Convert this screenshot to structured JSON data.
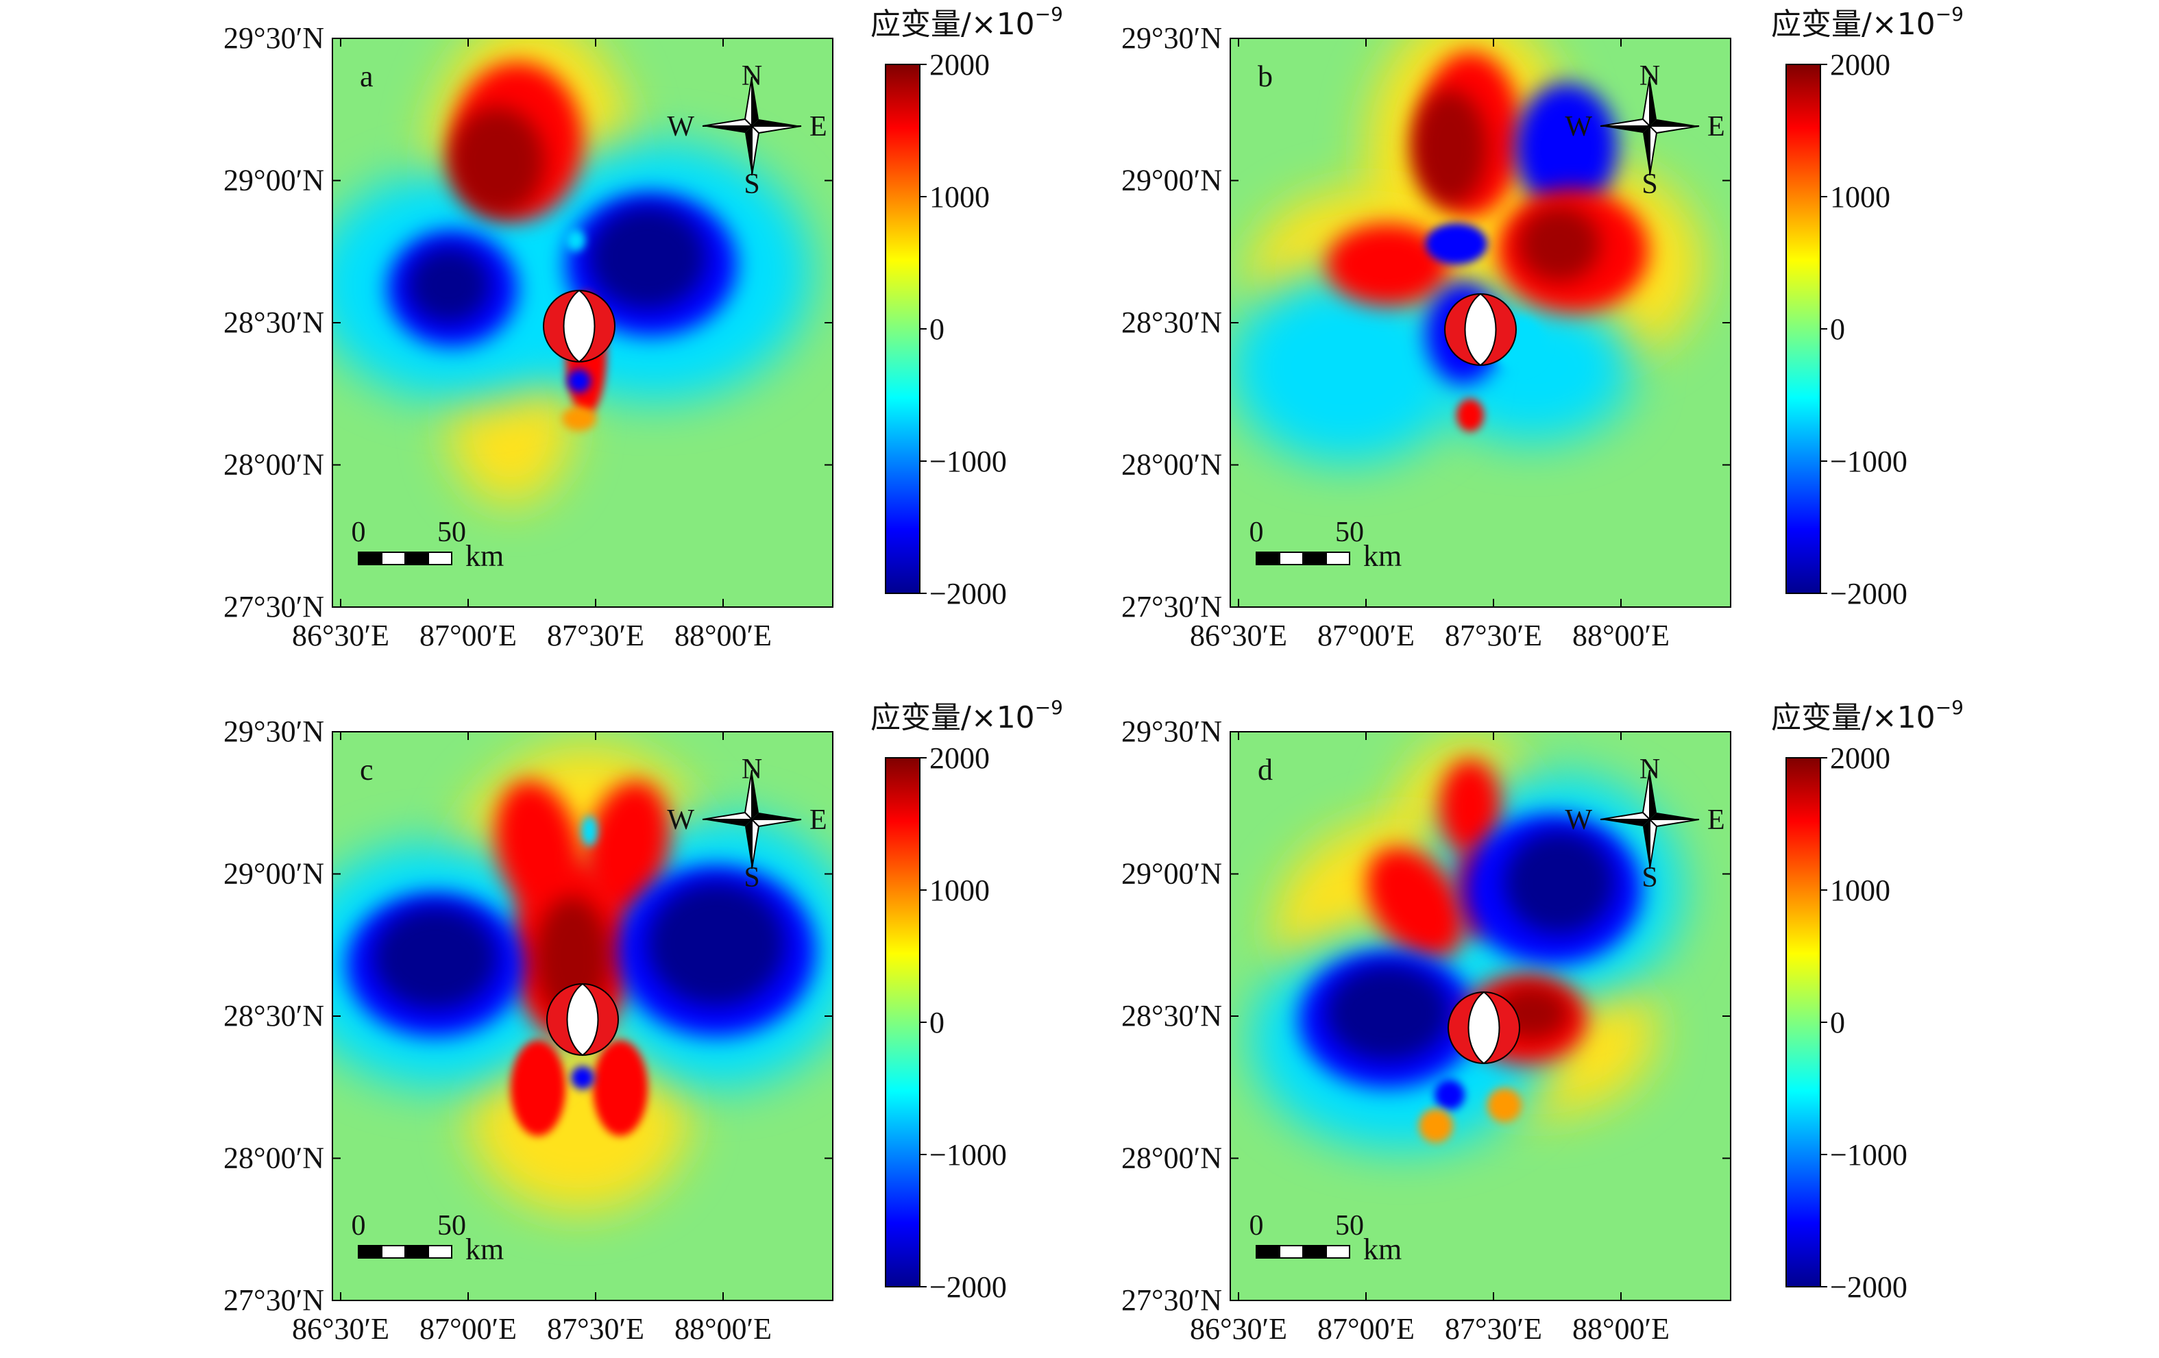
{
  "figure": {
    "panels": [
      {
        "id": "a",
        "label": "a",
        "pattern": "a"
      },
      {
        "id": "b",
        "label": "b",
        "pattern": "b"
      },
      {
        "id": "c",
        "label": "c",
        "pattern": "c"
      },
      {
        "id": "d",
        "label": "d",
        "pattern": "d"
      }
    ],
    "lat_ticks": [
      "29°30′N",
      "29°00′N",
      "28°30′N",
      "28°00′N",
      "27°30′N"
    ],
    "lon_ticks": [
      "86°30′E",
      "87°00′E",
      "87°30′E",
      "88°00′E"
    ],
    "compass": {
      "n": "N",
      "s": "S",
      "e": "E",
      "w": "W"
    },
    "scalebar": {
      "zero": "0",
      "fifty": "50",
      "unit": "km"
    },
    "colorbar": {
      "title": "应变量/×10",
      "exponent": "−9",
      "ticks": [
        "2000",
        "1000",
        "0",
        "−1000",
        "−2000"
      ],
      "range": [
        -2000,
        2000
      ],
      "colormap": "jet"
    },
    "colors": {
      "jet": [
        "#00008f",
        "#0000ff",
        "#00ffff",
        "#7fff7f",
        "#ffff00",
        "#ff0000",
        "#800000"
      ],
      "background_field": "#86ea7e",
      "beachball_red": "#e8161b",
      "beachball_white": "#ffffff",
      "frame": "#000000"
    }
  }
}
